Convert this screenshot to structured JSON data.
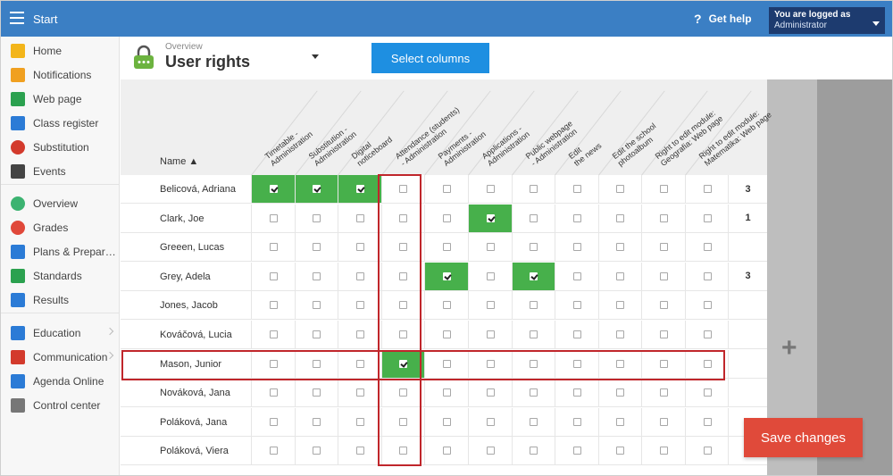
{
  "topbar": {
    "title": "Start",
    "help_label": "Get help",
    "user_line1": "You are logged as",
    "user_line2": "Administrator"
  },
  "sidebar": {
    "items": [
      {
        "label": "Home",
        "icon": "star-icon",
        "color": "#f3b51a"
      },
      {
        "label": "Notifications",
        "icon": "envelope-icon",
        "color": "#f0a020"
      },
      {
        "label": "Web page",
        "icon": "house-icon",
        "color": "#2ba14f"
      },
      {
        "label": "Class register",
        "icon": "book-icon",
        "color": "#2b7bd6"
      },
      {
        "label": "Substitution",
        "icon": "person-icon",
        "color": "#d33a2c"
      },
      {
        "label": "Events",
        "icon": "calendar-icon",
        "color": "#444444"
      },
      {
        "label": "Overview",
        "icon": "check-circle-icon",
        "color": "#3cb371"
      },
      {
        "label": "Grades",
        "icon": "grades-icon",
        "color": "#e0483a"
      },
      {
        "label": "Plans & Prepar…",
        "icon": "briefcase-icon",
        "color": "#2b7bd6"
      },
      {
        "label": "Standards",
        "icon": "shield-icon",
        "color": "#2ba14f"
      },
      {
        "label": "Results",
        "icon": "bar-chart-icon",
        "color": "#2b7bd6"
      },
      {
        "label": "Education",
        "icon": "open-book-icon",
        "color": "#2b7bd6"
      },
      {
        "label": "Communication",
        "icon": "chat-icon",
        "color": "#d33a2c"
      },
      {
        "label": "Agenda Online",
        "icon": "pencil-icon",
        "color": "#2b7bd6"
      },
      {
        "label": "Control center",
        "icon": "gear-icon",
        "color": "#777777"
      }
    ]
  },
  "header": {
    "breadcrumb": "Overview",
    "title": "User rights",
    "select_columns": "Select columns"
  },
  "table": {
    "name_header": "Name ▲",
    "columns": [
      "Timetable -\nAdministration",
      "Substitution -\nAdministration",
      "Digital\nnoticeboard",
      "Attendance (students)\n- Administration",
      "Payments -\nAdministration",
      "Applications -\nAdministration",
      "Public webpage\n- Administration",
      "Edit\nthe news",
      "Edit the school\nphotoalbum",
      "Right to edit module:\nGeografia: Web page",
      "Right to edit module:\nMatematika: Web page"
    ],
    "rows": [
      {
        "name": "Belicová, Adriana",
        "checks": [
          1,
          1,
          1,
          0,
          0,
          0,
          0,
          0,
          0,
          0,
          0
        ],
        "count": "3"
      },
      {
        "name": "Clark, Joe",
        "checks": [
          0,
          0,
          0,
          0,
          0,
          1,
          0,
          0,
          0,
          0,
          0
        ],
        "count": "1"
      },
      {
        "name": "Greeen, Lucas",
        "checks": [
          0,
          0,
          0,
          0,
          0,
          0,
          0,
          0,
          0,
          0,
          0
        ],
        "count": ""
      },
      {
        "name": "Grey, Adela",
        "checks": [
          0,
          0,
          0,
          0,
          1,
          0,
          1,
          0,
          0,
          0,
          0
        ],
        "count": "3"
      },
      {
        "name": "Jones, Jacob",
        "checks": [
          0,
          0,
          0,
          0,
          0,
          0,
          0,
          0,
          0,
          0,
          0
        ],
        "count": ""
      },
      {
        "name": "Kováčová, Lucia",
        "checks": [
          0,
          0,
          0,
          0,
          0,
          0,
          0,
          0,
          0,
          0,
          0
        ],
        "count": ""
      },
      {
        "name": "Mason, Junior",
        "checks": [
          0,
          0,
          0,
          1,
          0,
          0,
          0,
          0,
          0,
          0,
          0
        ],
        "count": ""
      },
      {
        "name": "Nováková, Jana",
        "checks": [
          0,
          0,
          0,
          0,
          0,
          0,
          0,
          0,
          0,
          0,
          0
        ],
        "count": ""
      },
      {
        "name": "Poláková, Jana",
        "checks": [
          0,
          0,
          0,
          0,
          0,
          0,
          0,
          0,
          0,
          0,
          0
        ],
        "count": ""
      },
      {
        "name": "Poláková, Viera",
        "checks": [
          0,
          0,
          0,
          0,
          0,
          0,
          0,
          0,
          0,
          0,
          0
        ],
        "count": ""
      }
    ]
  },
  "save_label": "Save changes",
  "colors": {
    "topbar": "#3b7fc4",
    "select_button": "#1e8fe1",
    "checked_cell": "#47b04b",
    "save_button": "#e04a3a",
    "highlight": "#c0262b"
  }
}
